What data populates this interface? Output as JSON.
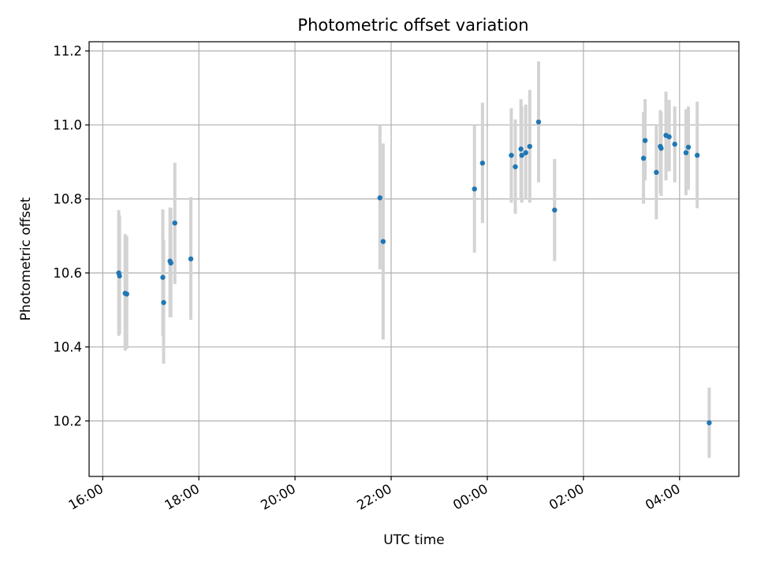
{
  "chart_data": {
    "type": "scatter",
    "title": "Photometric offset variation",
    "xlabel": "UTC time",
    "ylabel": "Photometric offset",
    "x_axis": {
      "kind": "time",
      "range": [
        "2000-01-01T15:43",
        "2000-01-02T05:14"
      ],
      "ticks": [
        {
          "t": "2000-01-01T16:00",
          "label": "16:00"
        },
        {
          "t": "2000-01-01T18:00",
          "label": "18:00"
        },
        {
          "t": "2000-01-01T20:00",
          "label": "20:00"
        },
        {
          "t": "2000-01-01T22:00",
          "label": "22:00"
        },
        {
          "t": "2000-01-02T00:00",
          "label": "00:00"
        },
        {
          "t": "2000-01-02T02:00",
          "label": "02:00"
        },
        {
          "t": "2000-01-02T04:00",
          "label": "04:00"
        }
      ]
    },
    "y_axis": {
      "range": [
        10.05,
        11.225
      ],
      "ticks": [
        10.2,
        10.4,
        10.6,
        10.8,
        11.0,
        11.2
      ],
      "tick_labels": [
        "10.2",
        "10.4",
        "10.6",
        "10.8",
        "11.0",
        "11.2"
      ]
    },
    "grid": true,
    "colors": {
      "points": "#1f77b4",
      "errorbars": "#d3d3d3",
      "grid": "#b0b0b0",
      "axes": "#000000"
    },
    "points": [
      {
        "t": "2000-01-01T16:20",
        "y": 10.6,
        "lo": 10.43,
        "hi": 10.77
      },
      {
        "t": "2000-01-01T16:21",
        "y": 10.592,
        "lo": 10.435,
        "hi": 10.755
      },
      {
        "t": "2000-01-01T16:28",
        "y": 10.545,
        "lo": 10.39,
        "hi": 10.705
      },
      {
        "t": "2000-01-01T16:30",
        "y": 10.543,
        "lo": 10.395,
        "hi": 10.7
      },
      {
        "t": "2000-01-01T17:15",
        "y": 10.588,
        "lo": 10.43,
        "hi": 10.772
      },
      {
        "t": "2000-01-01T17:16",
        "y": 10.52,
        "lo": 10.355,
        "hi": 10.69
      },
      {
        "t": "2000-01-01T17:24",
        "y": 10.632,
        "lo": 10.48,
        "hi": 10.777
      },
      {
        "t": "2000-01-01T17:25",
        "y": 10.627,
        "lo": 10.48,
        "hi": 10.775
      },
      {
        "t": "2000-01-01T17:30",
        "y": 10.735,
        "lo": 10.57,
        "hi": 10.898
      },
      {
        "t": "2000-01-01T17:50",
        "y": 10.638,
        "lo": 10.473,
        "hi": 10.805
      },
      {
        "t": "2000-01-01T21:46",
        "y": 10.803,
        "lo": 10.61,
        "hi": 11.0
      },
      {
        "t": "2000-01-01T21:50",
        "y": 10.685,
        "lo": 10.42,
        "hi": 10.95
      },
      {
        "t": "2000-01-01T23:44",
        "y": 10.827,
        "lo": 10.655,
        "hi": 11.0
      },
      {
        "t": "2000-01-01T23:54",
        "y": 10.897,
        "lo": 10.735,
        "hi": 11.06
      },
      {
        "t": "2000-01-02T00:30",
        "y": 10.918,
        "lo": 10.79,
        "hi": 11.045
      },
      {
        "t": "2000-01-02T00:35",
        "y": 10.887,
        "lo": 10.76,
        "hi": 11.015
      },
      {
        "t": "2000-01-02T00:42",
        "y": 10.935,
        "lo": 10.8,
        "hi": 11.07
      },
      {
        "t": "2000-01-02T00:43",
        "y": 10.918,
        "lo": 10.79,
        "hi": 11.05
      },
      {
        "t": "2000-01-02T00:48",
        "y": 10.925,
        "lo": 10.8,
        "hi": 11.055
      },
      {
        "t": "2000-01-02T00:53",
        "y": 10.942,
        "lo": 10.79,
        "hi": 11.095
      },
      {
        "t": "2000-01-02T01:04",
        "y": 11.008,
        "lo": 10.845,
        "hi": 11.172
      },
      {
        "t": "2000-01-02T01:24",
        "y": 10.77,
        "lo": 10.632,
        "hi": 10.908
      },
      {
        "t": "2000-01-02T03:15",
        "y": 10.91,
        "lo": 10.787,
        "hi": 11.035
      },
      {
        "t": "2000-01-02T03:17",
        "y": 10.958,
        "lo": 10.85,
        "hi": 11.07
      },
      {
        "t": "2000-01-02T03:31",
        "y": 10.872,
        "lo": 10.745,
        "hi": 11.0
      },
      {
        "t": "2000-01-02T03:36",
        "y": 10.942,
        "lo": 10.815,
        "hi": 11.04
      },
      {
        "t": "2000-01-02T03:37",
        "y": 10.937,
        "lo": 10.808,
        "hi": 11.035
      },
      {
        "t": "2000-01-02T03:43",
        "y": 10.972,
        "lo": 10.85,
        "hi": 11.09
      },
      {
        "t": "2000-01-02T03:47",
        "y": 10.968,
        "lo": 10.875,
        "hi": 11.068
      },
      {
        "t": "2000-01-02T03:54",
        "y": 10.948,
        "lo": 10.845,
        "hi": 11.05
      },
      {
        "t": "2000-01-02T04:08",
        "y": 10.925,
        "lo": 10.81,
        "hi": 11.043
      },
      {
        "t": "2000-01-02T04:11",
        "y": 10.94,
        "lo": 10.825,
        "hi": 11.05
      },
      {
        "t": "2000-01-02T04:22",
        "y": 10.918,
        "lo": 10.775,
        "hi": 11.063
      },
      {
        "t": "2000-01-02T04:37",
        "y": 10.195,
        "lo": 10.1,
        "hi": 10.29
      }
    ]
  }
}
